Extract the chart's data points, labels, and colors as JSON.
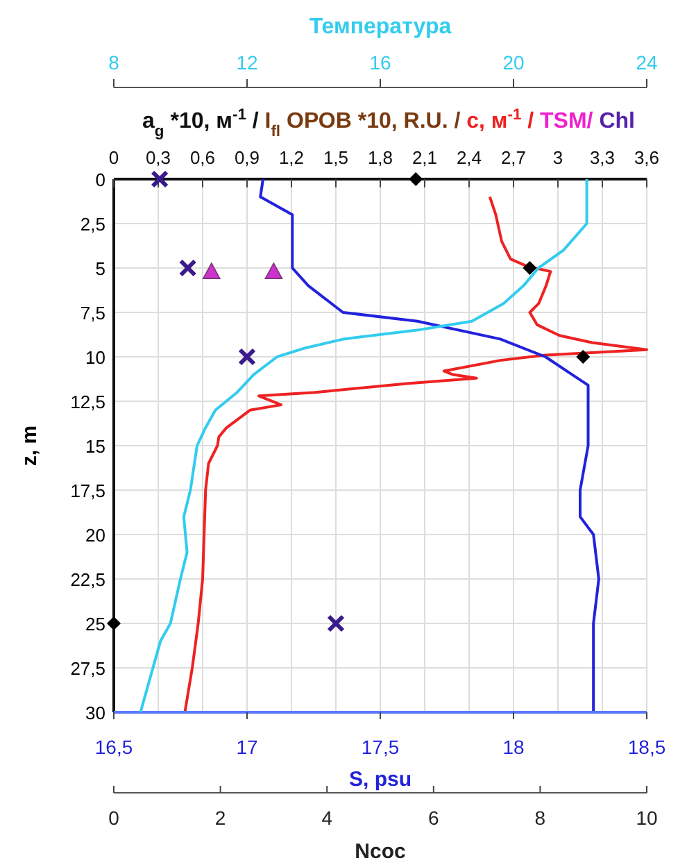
{
  "chart_data": [
    {
      "type": "line",
      "xlabel": "S, psu",
      "x2label": "a$_{g}$ *10, м$^{-1}$ / I$_{fl}$ ОРОВ *10, R.U. / c, м$^{-1}$ / TSM/ Chl",
      "ylabel": "z, m",
      "xlim": [
        16.5,
        18.5
      ],
      "xticks": [
        {
          "value": 16.5,
          "label": "16,5"
        },
        17,
        {
          "value": 17.5,
          "label": "17,5"
        },
        18,
        {
          "value": 18.5,
          "label": "18,5"
        }
      ],
      "x2lim": [
        0,
        3.6
      ],
      "x2ticks": [
        0,
        {
          "value": 0.3,
          "label": "0,3"
        },
        {
          "value": 0.6,
          "label": "0,6"
        },
        {
          "value": 0.9,
          "label": "0,9"
        },
        {
          "value": 1.2,
          "label": "1,2"
        },
        {
          "value": 1.5,
          "label": "1,5"
        },
        {
          "value": 1.8,
          "label": "1,8"
        },
        {
          "value": 2.1,
          "label": "2,1"
        },
        {
          "value": 2.4,
          "label": "2,4"
        },
        {
          "value": 2.7,
          "label": "2,7"
        },
        3,
        {
          "value": 3.3,
          "label": "3,3"
        },
        {
          "value": 3.6,
          "label": "3,6"
        }
      ],
      "ylim": [
        30,
        0
      ],
      "yticks": [
        0,
        {
          "value": 2.5,
          "label": "2,5"
        },
        5,
        {
          "value": 7.5,
          "label": "7,5"
        },
        10,
        {
          "value": 12.5,
          "label": "12,5"
        },
        15,
        {
          "value": 17.5,
          "label": "17,5"
        },
        20,
        {
          "value": 22.5,
          "label": "22,5"
        },
        25,
        {
          "value": 27.5,
          "label": "27,5"
        },
        30
      ],
      "grid": true,
      "series": [
        {
          "type": "line",
          "axis": "x2",
          "color": "#ee2222",
          "marker": "none",
          "x": [
            2.54,
            2.58,
            2.62,
            2.68,
            2.79,
            2.95,
            2.92,
            2.87,
            2.81,
            2.86,
            3.01,
            3.23,
            3.6,
            2.92,
            2.61,
            2.23,
            2.29,
            2.45,
            1.98,
            1.36,
            0.98,
            1.13,
            0.92,
            0.76,
            0.71,
            0.7,
            0.64,
            0.62,
            0.61,
            0.6,
            0.57,
            0.53,
            0.48
          ],
          "values": [
            1,
            2,
            3.5,
            4.5,
            4.9,
            5.2,
            6,
            7,
            7.5,
            8.2,
            8.8,
            9.2,
            9.6,
            9.9,
            10.2,
            10.8,
            11,
            11.2,
            11.5,
            12,
            12.2,
            12.7,
            13,
            14,
            14.5,
            15,
            16,
            17.5,
            20,
            22.5,
            25,
            27.5,
            30
          ]
        },
        {
          "type": "line",
          "color": "#2222dd",
          "marker": "none",
          "x": [
            17.06,
            17.05,
            17.17,
            17.17,
            17.23,
            17.36,
            17.64,
            17.95,
            18.12,
            18.22,
            18.28,
            18.28,
            18.25,
            18.25,
            18.3,
            18.32,
            18.3,
            18.3
          ],
          "values": [
            0,
            1,
            2,
            5,
            6,
            7.5,
            8,
            9,
            10,
            11,
            11.6,
            15,
            17.5,
            19,
            20,
            22.5,
            25,
            30
          ]
        },
        {
          "type": "scatter",
          "axis": "x2",
          "color": "#000000",
          "marker": "diamond",
          "x": [
            2.04,
            2.81,
            3.17,
            0
          ],
          "values": [
            0,
            5,
            10,
            25
          ]
        },
        {
          "type": "scatter",
          "axis": "x2",
          "color": "#cc33cc",
          "marker": "triangle",
          "x": [
            0.66,
            1.08
          ],
          "values": [
            5.2,
            5.2
          ]
        },
        {
          "type": "scatter",
          "axis": "x2",
          "color": "#3a1a8c",
          "marker": "cross",
          "x": [
            0.31,
            0.5,
            0.9,
            1.5
          ],
          "values": [
            0,
            5,
            10,
            25
          ]
        }
      ]
    },
    {
      "type": "line",
      "xlabel": "Ncoc",
      "x2label": "Температура",
      "xlim": [
        0,
        10
      ],
      "xticks": [
        0,
        2,
        4,
        6,
        8,
        10
      ],
      "x2lim": [
        8,
        24
      ],
      "x2ticks": [
        8,
        12,
        16,
        20,
        24
      ],
      "ylim": [
        30,
        0
      ],
      "tick_labels": "x",
      "series": [
        {
          "type": "line",
          "axis": "x2",
          "color": "#33ccee",
          "marker": "none",
          "x": [
            22.2,
            22.2,
            21.5,
            20.75,
            20.3,
            19.7,
            18.75,
            17.1,
            14.9,
            13.75,
            12.9,
            12.2,
            11.7,
            11.05,
            10.75,
            10.5,
            10.3,
            10.1,
            10.2,
            10.0,
            9.7,
            9.4,
            8.8
          ],
          "values": [
            0,
            2.5,
            4,
            5,
            6,
            7,
            8,
            8.5,
            9,
            9.5,
            10,
            11,
            12,
            13,
            14,
            15,
            17.5,
            19,
            21,
            22.5,
            25,
            26,
            30
          ]
        }
      ]
    }
  ]
}
